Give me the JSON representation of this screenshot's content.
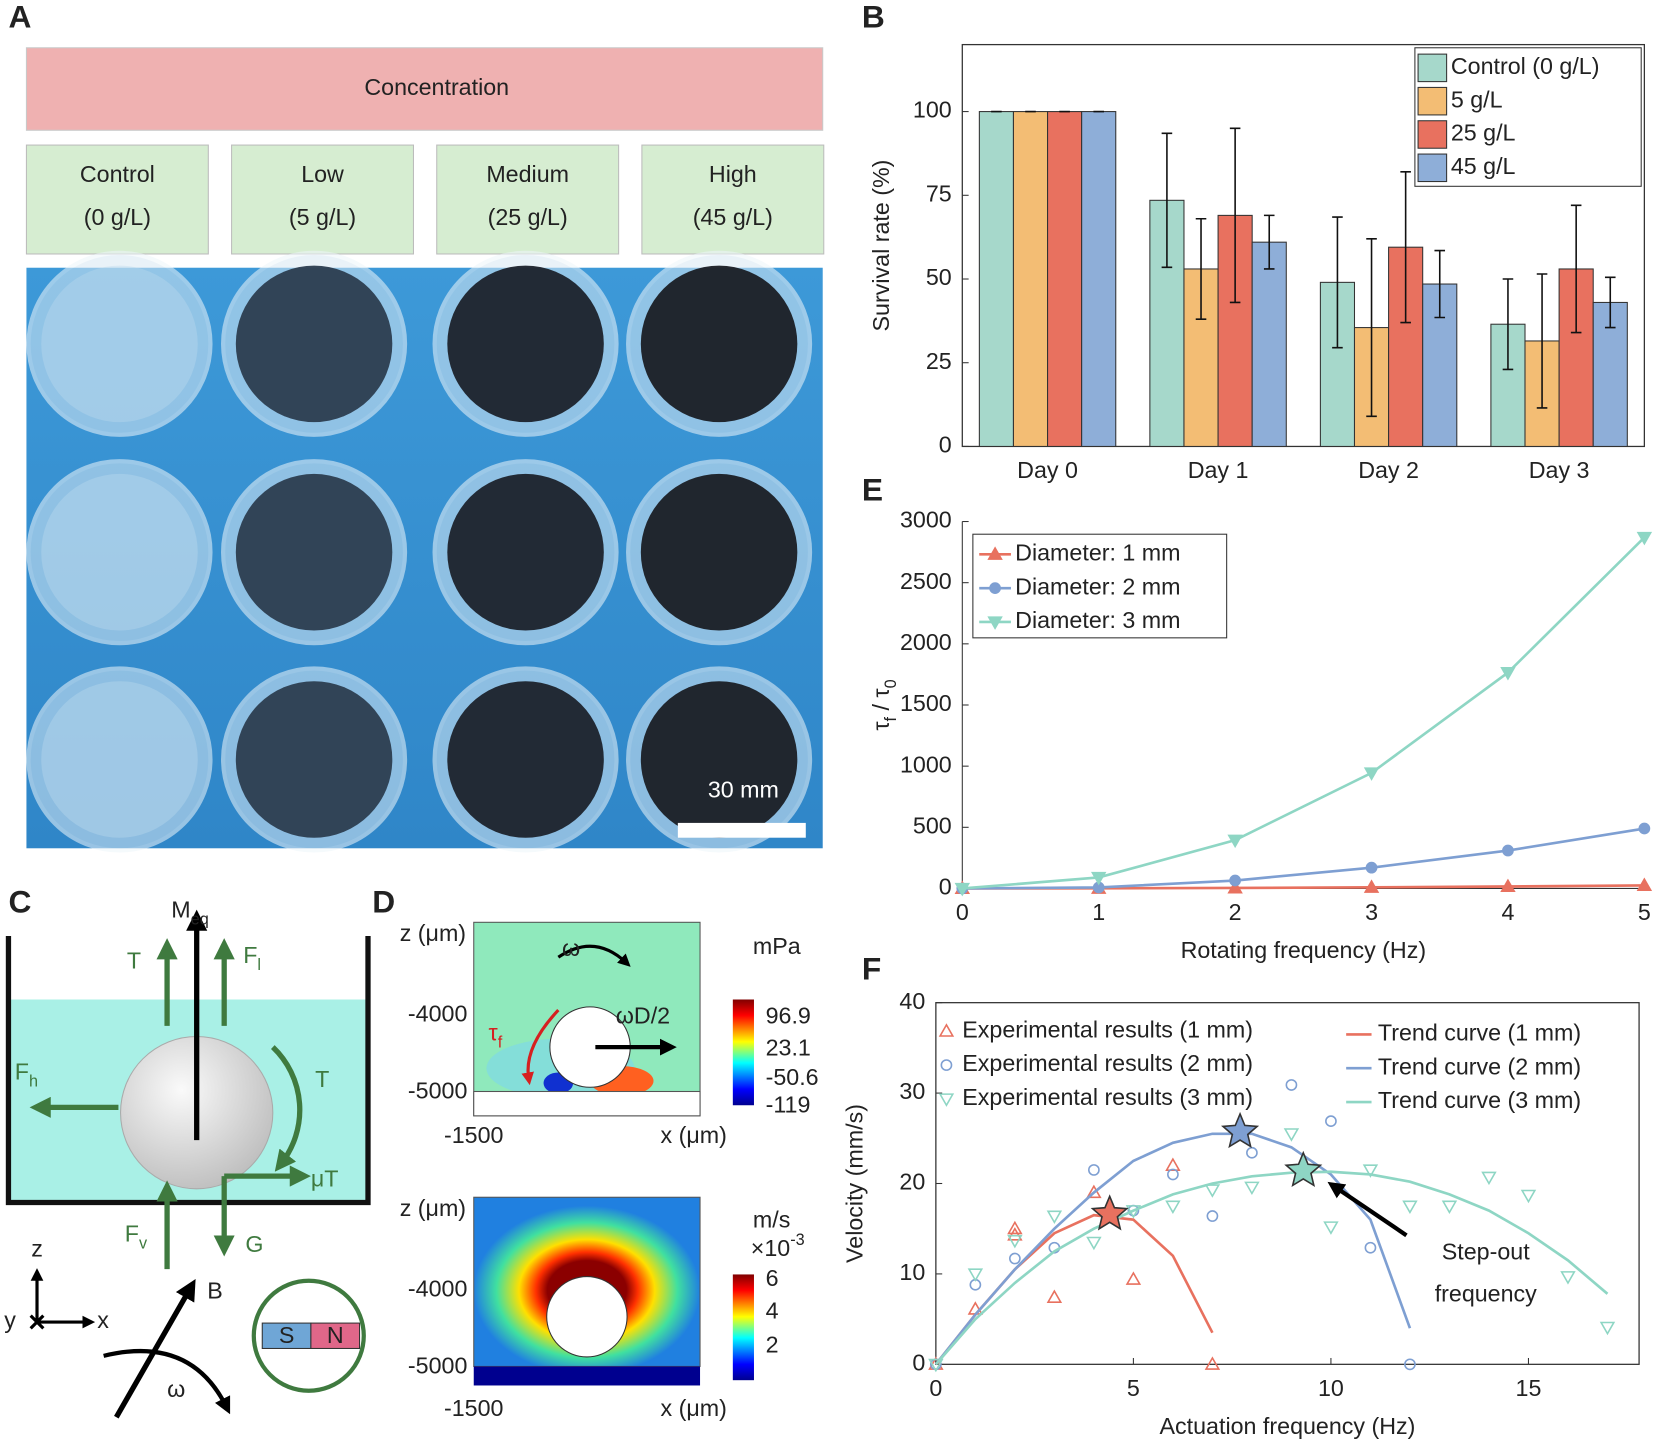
{
  "panels": {
    "A": {
      "letter": "A",
      "header": "Concentration",
      "groups": [
        [
          "Control",
          "(0 g/L)"
        ],
        [
          "Low",
          "(5 g/L)"
        ],
        [
          "Medium",
          "(25 g/L)"
        ],
        [
          "High",
          "(45 g/L)"
        ]
      ],
      "scale_bar": "30 mm"
    },
    "C": {
      "letter": "C",
      "moment": [
        "M",
        "eq"
      ],
      "thrust": "T",
      "lift": [
        "F",
        "l"
      ],
      "drag": [
        "F",
        "h"
      ],
      "torque": "T",
      "friction": "μT",
      "buoyancy": [
        "F",
        "v"
      ],
      "gravity": "G",
      "axes": [
        "z",
        "y",
        "x"
      ],
      "field": "B",
      "omega": "ω",
      "magnet": [
        "S",
        "N"
      ]
    },
    "D": {
      "letter": "D",
      "top": {
        "z_label": "z (μm)",
        "z_ticks": [
          "-4000",
          "-5000"
        ],
        "x_tick": "-1500",
        "x_label": "x (μm)",
        "omega": "ω",
        "speed": "ωD/2",
        "shear": [
          "τ",
          "f"
        ],
        "unit": "mPa",
        "colorbar": [
          "96.9",
          "23.1",
          "-50.6",
          "-119"
        ]
      },
      "bottom": {
        "z_label": "z (μm)",
        "z_ticks": [
          "-4000",
          "-5000"
        ],
        "x_tick": "-1500",
        "x_label": "x (μm)",
        "unit": "m/s",
        "scale": [
          "×10",
          "-3"
        ],
        "colorbar": [
          "6",
          "4",
          "2"
        ]
      }
    }
  },
  "chart_data": [
    {
      "panel": "B",
      "type": "bar",
      "ylabel": "Survival rate (%)",
      "categories": [
        "Day 0",
        "Day 1",
        "Day 2",
        "Day 3"
      ],
      "ylim": [
        0,
        120
      ],
      "yticks": [
        0,
        25,
        50,
        75,
        100
      ],
      "legend": "upper right",
      "box": true,
      "series": [
        {
          "name": "Control (0 g/L)",
          "color": "#a6d8cb",
          "values": [
            100,
            73.5,
            49,
            36.5
          ],
          "errors": [
            0,
            20,
            19.5,
            13.5
          ]
        },
        {
          "name": "5 g/L",
          "color": "#f3bd74",
          "values": [
            100,
            53,
            35.5,
            31.5
          ],
          "errors": [
            0,
            15,
            26.5,
            20
          ]
        },
        {
          "name": "25 g/L",
          "color": "#e8715f",
          "values": [
            100,
            69,
            59.5,
            53
          ],
          "errors": [
            0,
            26,
            22.5,
            19
          ]
        },
        {
          "name": "45 g/L",
          "color": "#8eaed8",
          "values": [
            100,
            61,
            48.5,
            43
          ],
          "errors": [
            0,
            8,
            10,
            7.5
          ]
        }
      ]
    },
    {
      "panel": "E",
      "type": "line",
      "xlabel": "Rotating frequency (Hz)",
      "ylabel": [
        "τ",
        "f",
        " / τ",
        "0"
      ],
      "xlim": [
        0,
        5
      ],
      "xticks": [
        0,
        1,
        2,
        3,
        4,
        5
      ],
      "ylim": [
        0,
        3000
      ],
      "yticks": [
        0,
        500,
        1000,
        1500,
        2000,
        2500,
        3000
      ],
      "legend": "upper left",
      "box": false,
      "marker_filled": true,
      "series": [
        {
          "name": "Diameter: 1 mm",
          "color": "#e8715f",
          "marker": "triangle-up",
          "x": [
            0,
            1,
            2,
            3,
            4,
            5
          ],
          "values": [
            0,
            1,
            4,
            9,
            16,
            25
          ]
        },
        {
          "name": "Diameter: 2 mm",
          "color": "#7e9fd2",
          "marker": "circle",
          "x": [
            0,
            1,
            2,
            3,
            4,
            5
          ],
          "values": [
            0,
            8,
            65,
            170,
            310,
            490
          ]
        },
        {
          "name": "Diameter: 3 mm",
          "color": "#8ed6c4",
          "marker": "triangle-down",
          "x": [
            0,
            1,
            2,
            3,
            4,
            5
          ],
          "values": [
            0,
            90,
            395,
            945,
            1765,
            2870
          ]
        }
      ]
    },
    {
      "panel": "F",
      "type": "scatter",
      "xlabel": "Actuation frequency (Hz)",
      "ylabel": "Velocity (mm/s)",
      "xlim": [
        0,
        17.8
      ],
      "xticks": [
        0,
        5,
        10,
        15
      ],
      "ylim": [
        0,
        40
      ],
      "yticks": [
        0,
        10,
        20,
        30,
        40
      ],
      "legend": "upper left",
      "box": true,
      "marker_filled": false,
      "series": [
        {
          "name": "Experimental results (1 mm)",
          "color": "#e8715f",
          "marker": "triangle-up",
          "x": [
            0,
            1,
            2,
            2,
            3,
            4,
            5,
            6,
            7
          ],
          "values": [
            0,
            6.1,
            15,
            14.3,
            7.4,
            19,
            9.4,
            22,
            0
          ]
        },
        {
          "name": "Experimental results (2 mm)",
          "color": "#7e9fd2",
          "marker": "circle",
          "x": [
            0,
            1,
            2,
            3,
            4,
            5,
            6,
            7,
            8,
            9,
            10,
            11,
            12
          ],
          "values": [
            0,
            8.8,
            11.7,
            12.9,
            21.5,
            17,
            21,
            16.4,
            23.4,
            30.9,
            26.9,
            12.9,
            0
          ]
        },
        {
          "name": "Experimental results (3 mm)",
          "color": "#8ed6c4",
          "marker": "triangle-down",
          "x": [
            0,
            1,
            2,
            3,
            4,
            5,
            6,
            7,
            8,
            9,
            10,
            11,
            12,
            13,
            14,
            15,
            16,
            17
          ],
          "values": [
            0,
            10,
            13.7,
            16.4,
            13.5,
            17,
            17.5,
            19.3,
            19.6,
            25.5,
            15.2,
            21.5,
            17.5,
            17.5,
            20.7,
            18.7,
            9.7,
            4.1
          ]
        },
        {
          "name": "Trend curve (1 mm)",
          "color": "#e8715f",
          "marker": "line",
          "x": [
            0,
            1,
            2,
            3,
            4,
            5,
            6,
            7
          ],
          "values": [
            0,
            5.5,
            10.5,
            14.5,
            16.5,
            16,
            12,
            3.5
          ]
        },
        {
          "name": "Trend curve (2 mm)",
          "color": "#7e9fd2",
          "marker": "line",
          "x": [
            0,
            1,
            2,
            3,
            4,
            5,
            6,
            7,
            8,
            9,
            10,
            11,
            12
          ],
          "values": [
            0,
            5.5,
            10.5,
            15,
            19,
            22.5,
            24.5,
            25.5,
            25.5,
            24,
            21,
            16,
            4
          ]
        },
        {
          "name": "Trend curve (3 mm)",
          "color": "#8ed6c4",
          "marker": "line",
          "x": [
            0,
            1,
            2,
            3,
            4,
            5,
            6,
            7,
            8,
            9,
            10,
            11,
            12,
            13,
            14,
            15,
            16,
            17
          ],
          "values": [
            0,
            5,
            9,
            12.5,
            15,
            17,
            18.8,
            20,
            20.8,
            21.2,
            21.3,
            21,
            20.2,
            18.8,
            17,
            14.5,
            11.5,
            7.8
          ]
        }
      ],
      "highlights": {
        "x": [
          4.4,
          7.7,
          9.3
        ],
        "values": [
          16.6,
          25.7,
          21.4
        ],
        "colors": [
          "#e8715f",
          "#7e9fd2",
          "#8ed6c4"
        ]
      },
      "annotation": [
        "Step-out",
        "frequency"
      ]
    }
  ]
}
